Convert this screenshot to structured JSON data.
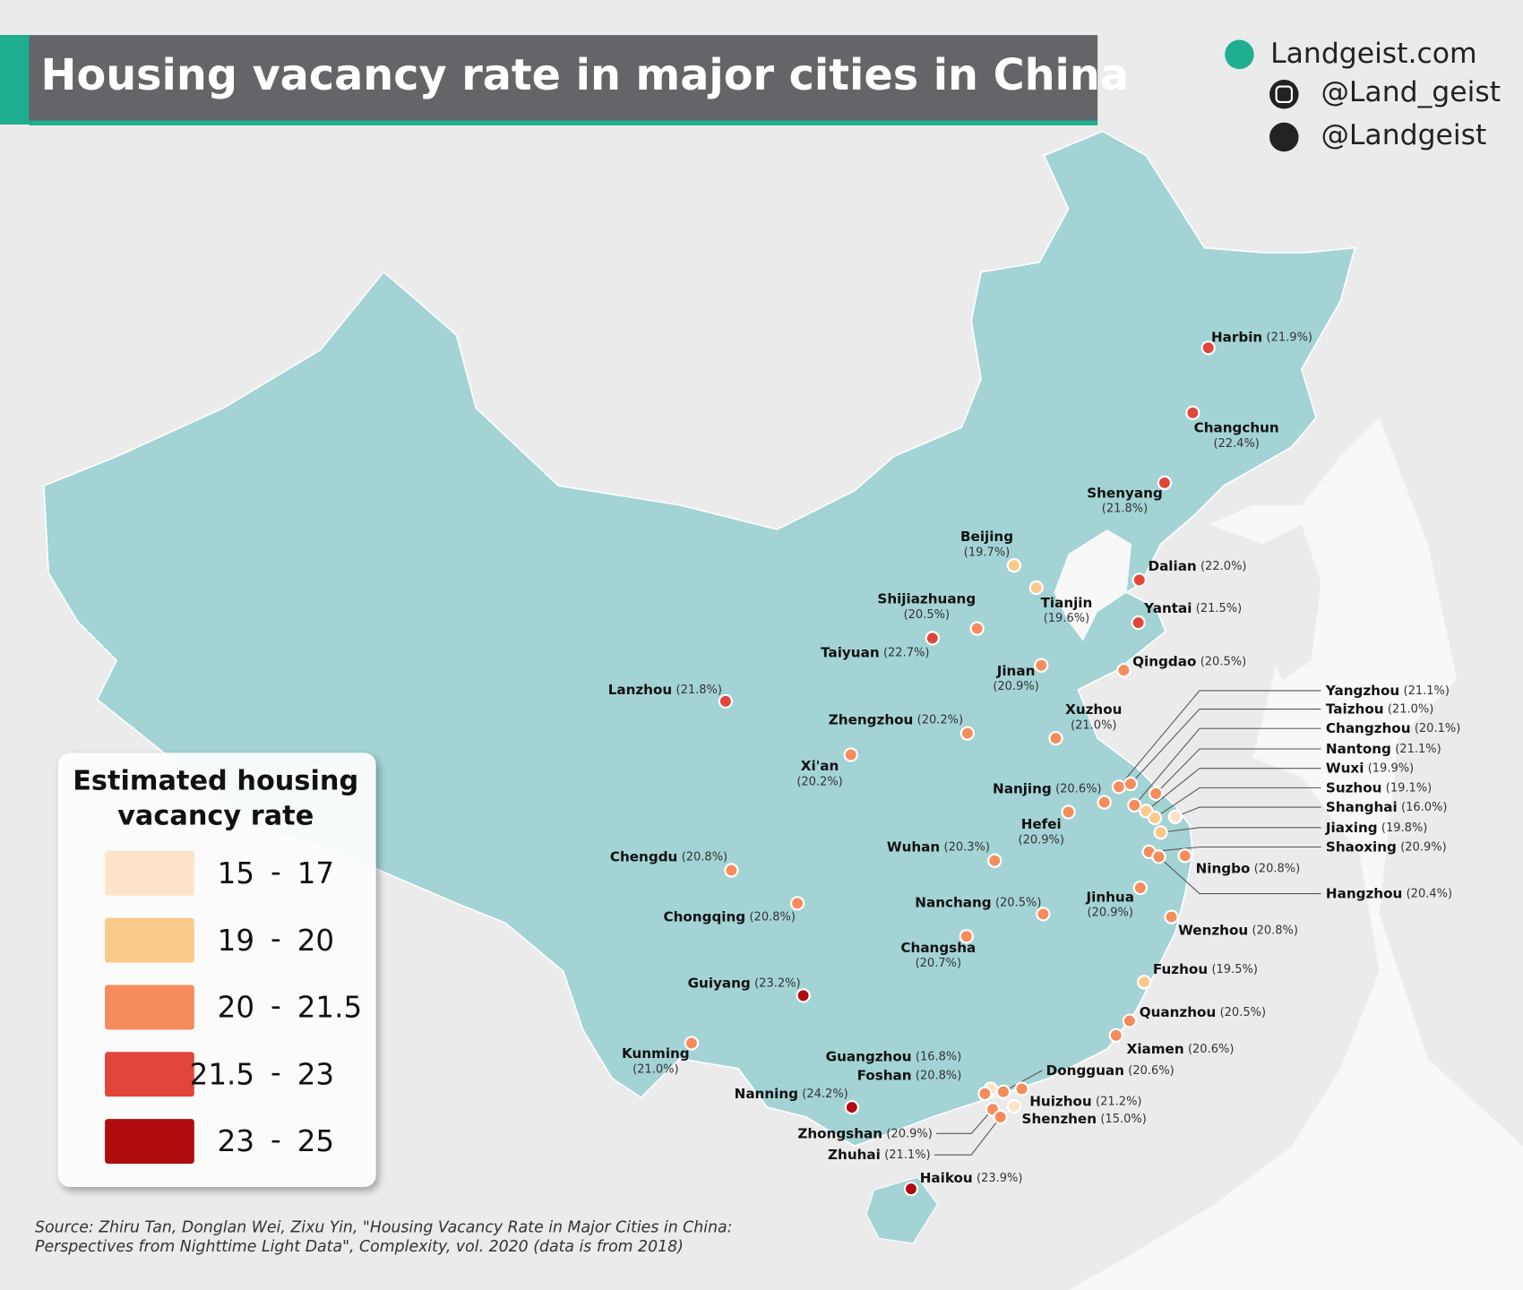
{
  "header": {
    "title": "Housing vacancy rate in major cities in China"
  },
  "branding": {
    "website": "Landgeist.com",
    "instagram": "@Land_geist",
    "twitter": "@Landgeist"
  },
  "legend": {
    "title_lines": [
      "Estimated housing",
      "vacancy rate"
    ],
    "separator": "-",
    "bins": [
      {
        "from": 15,
        "to": 17,
        "color": "#fde4c8"
      },
      {
        "from": 19,
        "to": 20,
        "color": "#fbc98a"
      },
      {
        "from": 20,
        "to": 21.5,
        "color": "#f68b5b"
      },
      {
        "from": 21.5,
        "to": 23,
        "color": "#e0463a"
      },
      {
        "from": 23,
        "to": 25,
        "color": "#b00c10"
      }
    ]
  },
  "cities": [
    {
      "name": "Harbin",
      "value": 21.9,
      "value_label": "(21.9%)"
    },
    {
      "name": "Changchun",
      "value": 22.4,
      "value_label": "(22.4%)"
    },
    {
      "name": "Shenyang",
      "value": 21.8,
      "value_label": "(21.8%)"
    },
    {
      "name": "Beijing",
      "value": 19.7,
      "value_label": "(19.7%)"
    },
    {
      "name": "Dalian",
      "value": 22.0,
      "value_label": "(22.0%)"
    },
    {
      "name": "Tianjin",
      "value": 19.6,
      "value_label": "(19.6%)"
    },
    {
      "name": "Yantai",
      "value": 21.5,
      "value_label": "(21.5%)"
    },
    {
      "name": "Shijiazhuang",
      "value": 20.5,
      "value_label": "(20.5%)"
    },
    {
      "name": "Taiyuan",
      "value": 22.7,
      "value_label": "(22.7%)"
    },
    {
      "name": "Qingdao",
      "value": 20.5,
      "value_label": "(20.5%)"
    },
    {
      "name": "Jinan",
      "value": 20.9,
      "value_label": "(20.9%)"
    },
    {
      "name": "Lanzhou",
      "value": 21.8,
      "value_label": "(21.8%)"
    },
    {
      "name": "Zhengzhou",
      "value": 20.2,
      "value_label": "(20.2%)"
    },
    {
      "name": "Xuzhou",
      "value": 21.0,
      "value_label": "(21.0%)"
    },
    {
      "name": "Xi'an",
      "value": 20.2,
      "value_label": "(20.2%)"
    },
    {
      "name": "Nanjing",
      "value": 20.6,
      "value_label": "(20.6%)"
    },
    {
      "name": "Hefei",
      "value": 20.9,
      "value_label": "(20.9%)"
    },
    {
      "name": "Wuhan",
      "value": 20.3,
      "value_label": "(20.3%)"
    },
    {
      "name": "Chengdu",
      "value": 20.8,
      "value_label": "(20.8%)"
    },
    {
      "name": "Nanchang",
      "value": 20.5,
      "value_label": "(20.5%)"
    },
    {
      "name": "Chongqing",
      "value": 20.8,
      "value_label": "(20.8%)"
    },
    {
      "name": "Jinhua",
      "value": 20.9,
      "value_label": "(20.9%)"
    },
    {
      "name": "Wenzhou",
      "value": 20.8,
      "value_label": "(20.8%)"
    },
    {
      "name": "Changsha",
      "value": 20.7,
      "value_label": "(20.7%)"
    },
    {
      "name": "Fuzhou",
      "value": 19.5,
      "value_label": "(19.5%)"
    },
    {
      "name": "Guiyang",
      "value": 23.2,
      "value_label": "(23.2%)"
    },
    {
      "name": "Quanzhou",
      "value": 20.5,
      "value_label": "(20.5%)"
    },
    {
      "name": "Xiamen",
      "value": 20.6,
      "value_label": "(20.6%)"
    },
    {
      "name": "Kunming",
      "value": 21.0,
      "value_label": "(21.0%)"
    },
    {
      "name": "Nanning",
      "value": 24.2,
      "value_label": "(24.2%)"
    },
    {
      "name": "Haikou",
      "value": 23.9,
      "value_label": "(23.9%)"
    },
    {
      "name": "Guangzhou",
      "value": 16.8,
      "value_label": "(16.8%)"
    },
    {
      "name": "Foshan",
      "value": 20.8,
      "value_label": "(20.8%)"
    },
    {
      "name": "Dongguan",
      "value": 20.6,
      "value_label": "(20.6%)"
    },
    {
      "name": "Huizhou",
      "value": 21.2,
      "value_label": "(21.2%)"
    },
    {
      "name": "Shenzhen",
      "value": 15.0,
      "value_label": "(15.0%)"
    },
    {
      "name": "Zhongshan",
      "value": 20.9,
      "value_label": "(20.9%)"
    },
    {
      "name": "Zhuhai",
      "value": 21.1,
      "value_label": "(21.1%)"
    },
    {
      "name": "Yangzhou",
      "value": 21.1,
      "value_label": "(21.1%)"
    },
    {
      "name": "Taizhou",
      "value": 21.0,
      "value_label": "(21.0%)"
    },
    {
      "name": "Changzhou",
      "value": 20.1,
      "value_label": "(20.1%)"
    },
    {
      "name": "Nantong",
      "value": 21.1,
      "value_label": "(21.1%)"
    },
    {
      "name": "Wuxi",
      "value": 19.9,
      "value_label": "(19.9%)"
    },
    {
      "name": "Suzhou",
      "value": 19.1,
      "value_label": "(19.1%)"
    },
    {
      "name": "Shanghai",
      "value": 16.0,
      "value_label": "(16.0%)"
    },
    {
      "name": "Jiaxing",
      "value": 19.8,
      "value_label": "(19.8%)"
    },
    {
      "name": "Shaoxing",
      "value": 20.9,
      "value_label": "(20.9%)"
    },
    {
      "name": "Ningbo",
      "value": 20.8,
      "value_label": "(20.8%)"
    },
    {
      "name": "Hangzhou",
      "value": 20.4,
      "value_label": "(20.4%)"
    }
  ],
  "source": {
    "lines": [
      "Source: Zhiru Tan, Donglan Wei, Zixu Yin, \"Housing Vacancy Rate in Major Cities in China:",
      "Perspectives from Nighttime Light Data\", Complexity, vol. 2020 (data is from 2018)"
    ]
  }
}
